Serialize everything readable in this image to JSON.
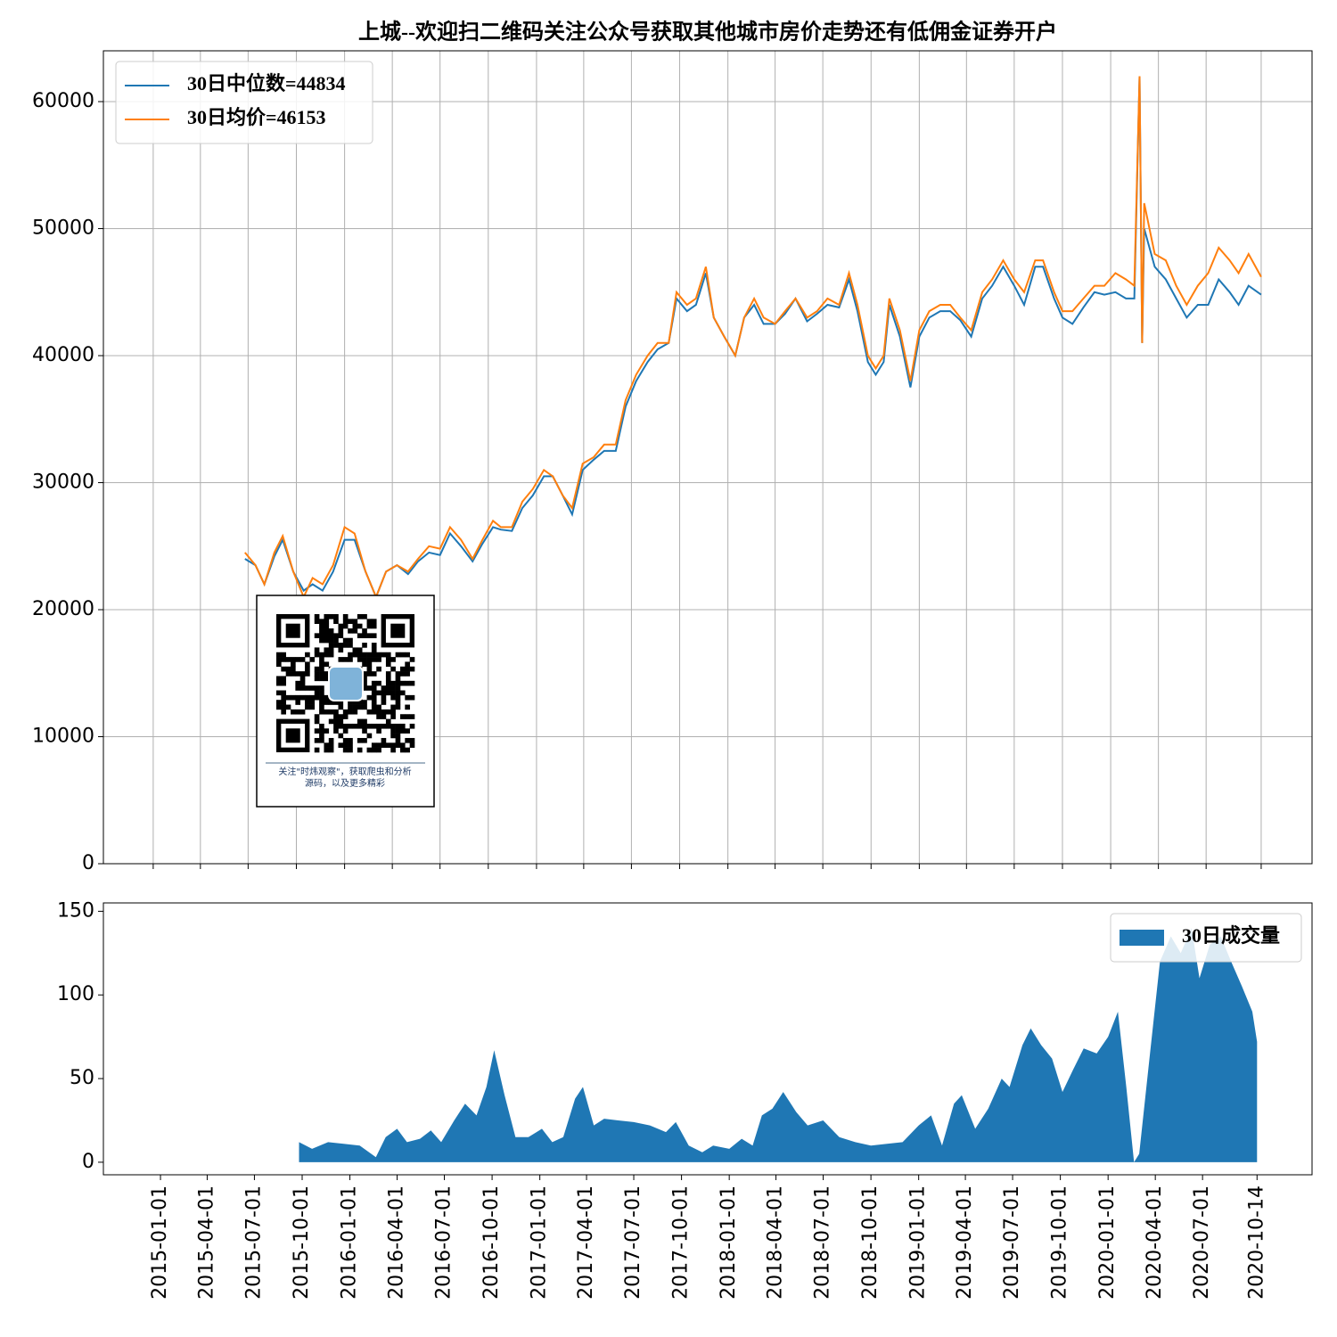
{
  "chart_data": [
    {
      "type": "line",
      "title": "上城--欢迎扫二维码关注公众号获取其他城市房价走势还有低佣金证券开户",
      "xlim": [
        "2014-09-28",
        "2021-01-19"
      ],
      "ylim": [
        0,
        64000
      ],
      "yticks": [
        0,
        10000,
        20000,
        30000,
        40000,
        50000,
        60000
      ],
      "xticks": [
        "2015-01-01",
        "2015-04-01",
        "2015-07-01",
        "2015-10-01",
        "2016-01-01",
        "2016-04-01",
        "2016-07-01",
        "2016-10-01",
        "2017-01-01",
        "2017-04-01",
        "2017-07-01",
        "2017-10-01",
        "2018-01-01",
        "2018-04-01",
        "2018-07-01",
        "2018-10-01",
        "2019-01-01",
        "2019-04-01",
        "2019-07-01",
        "2019-10-01",
        "2020-01-01",
        "2020-04-01",
        "2020-07-01",
        "2020-10-14"
      ],
      "grid": true,
      "legend": "upper left",
      "qr_caption": [
        "关注\"时炜观察\"，获取爬虫和分析",
        "源码，以及更多精彩"
      ],
      "x": [
        "2015-06-25",
        "2015-07-15",
        "2015-08-01",
        "2015-08-20",
        "2015-09-05",
        "2015-09-25",
        "2015-10-15",
        "2015-11-01",
        "2015-11-20",
        "2015-12-10",
        "2016-01-01",
        "2016-01-20",
        "2016-02-10",
        "2016-03-01",
        "2016-03-20",
        "2016-04-10",
        "2016-05-01",
        "2016-05-20",
        "2016-06-10",
        "2016-07-01",
        "2016-07-20",
        "2016-08-10",
        "2016-09-01",
        "2016-09-20",
        "2016-10-10",
        "2016-10-25",
        "2016-11-15",
        "2016-12-05",
        "2016-12-25",
        "2017-01-15",
        "2017-02-01",
        "2017-02-20",
        "2017-03-10",
        "2017-03-30",
        "2017-04-20",
        "2017-05-10",
        "2017-06-01",
        "2017-06-20",
        "2017-07-10",
        "2017-08-01",
        "2017-08-20",
        "2017-09-10",
        "2017-09-25",
        "2017-10-15",
        "2017-11-01",
        "2017-11-20",
        "2017-12-05",
        "2017-12-25",
        "2018-01-15",
        "2018-02-01",
        "2018-02-20",
        "2018-03-10",
        "2018-04-01",
        "2018-04-20",
        "2018-05-10",
        "2018-06-01",
        "2018-06-20",
        "2018-07-10",
        "2018-08-01",
        "2018-08-20",
        "2018-09-05",
        "2018-09-25",
        "2018-10-10",
        "2018-10-25",
        "2018-11-05",
        "2018-11-25",
        "2018-12-15",
        "2019-01-01",
        "2019-01-20",
        "2019-02-10",
        "2019-03-01",
        "2019-03-20",
        "2019-04-10",
        "2019-05-01",
        "2019-05-20",
        "2019-06-10",
        "2019-07-01",
        "2019-07-20",
        "2019-08-10",
        "2019-08-25",
        "2019-09-15",
        "2019-10-01",
        "2019-10-20",
        "2019-11-10",
        "2019-12-01",
        "2019-12-20",
        "2020-01-10",
        "2020-01-30",
        "2020-02-15",
        "2020-02-25",
        "2020-03-01",
        "2020-03-05",
        "2020-03-25",
        "2020-04-15",
        "2020-05-05",
        "2020-05-25",
        "2020-06-15",
        "2020-07-05",
        "2020-07-25",
        "2020-08-15",
        "2020-09-01",
        "2020-09-20",
        "2020-10-14"
      ],
      "series": [
        {
          "name": "30日中位数=44834",
          "color": "#1f77b4",
          "values": [
            24000,
            23500,
            22000,
            24200,
            25500,
            23000,
            21500,
            22000,
            21500,
            23000,
            25500,
            25500,
            23000,
            21000,
            23000,
            23500,
            22800,
            23800,
            24500,
            24300,
            26000,
            25000,
            23800,
            25200,
            26500,
            26300,
            26200,
            28000,
            29000,
            30500,
            30500,
            29000,
            27500,
            31000,
            31800,
            32500,
            32500,
            36000,
            38000,
            39500,
            40500,
            41000,
            44500,
            43500,
            44000,
            46500,
            43000,
            41500,
            40000,
            43000,
            44000,
            42500,
            42500,
            43300,
            44500,
            42700,
            43300,
            44000,
            43800,
            46000,
            43500,
            39500,
            38500,
            39500,
            44000,
            41500,
            37500,
            41500,
            43000,
            43500,
            43500,
            42800,
            41500,
            44500,
            45500,
            47000,
            45500,
            44000,
            47000,
            47000,
            44500,
            43000,
            42500,
            43800,
            45000,
            44800,
            45000,
            44500,
            44500,
            62000,
            41000,
            50000,
            47000,
            46000,
            44500,
            43000,
            44000,
            44000,
            46000,
            45000,
            44000,
            45500,
            44800
          ]
        },
        {
          "name": "30日均价=46153",
          "color": "#ff7f0e",
          "values": [
            24500,
            23500,
            22000,
            24500,
            25800,
            23000,
            21000,
            22500,
            22000,
            23500,
            26500,
            26000,
            23000,
            21000,
            23000,
            23500,
            23000,
            24000,
            25000,
            24800,
            26500,
            25500,
            24000,
            25500,
            27000,
            26500,
            26500,
            28500,
            29500,
            31000,
            30500,
            29000,
            28000,
            31500,
            32000,
            33000,
            33000,
            36500,
            38500,
            40000,
            41000,
            41000,
            45000,
            44000,
            44500,
            47000,
            43000,
            41500,
            40000,
            43000,
            44500,
            43000,
            42500,
            43500,
            44500,
            43000,
            43500,
            44500,
            44000,
            46500,
            44000,
            40000,
            39000,
            40000,
            44500,
            42000,
            38000,
            42000,
            43500,
            44000,
            44000,
            43000,
            42000,
            45000,
            46000,
            47500,
            46000,
            45000,
            47500,
            47500,
            45000,
            43500,
            43500,
            44500,
            45500,
            45500,
            46500,
            46000,
            45500,
            62000,
            41000,
            52000,
            48000,
            47500,
            45500,
            44000,
            45500,
            46500,
            48500,
            47500,
            46500,
            48000,
            46200
          ]
        }
      ]
    },
    {
      "type": "area",
      "xlim": [
        "2014-09-13",
        "2021-01-28"
      ],
      "ylim": [
        -7.5,
        155
      ],
      "yticks": [
        0,
        50,
        100,
        150
      ],
      "xticks": [
        "2015-01-01",
        "2015-04-01",
        "2015-07-01",
        "2015-10-01",
        "2016-01-01",
        "2016-04-01",
        "2016-07-01",
        "2016-10-01",
        "2017-01-01",
        "2017-04-01",
        "2017-07-01",
        "2017-10-01",
        "2018-01-01",
        "2018-04-01",
        "2018-07-01",
        "2018-10-01",
        "2019-01-01",
        "2019-04-01",
        "2019-07-01",
        "2019-10-01",
        "2020-01-01",
        "2020-04-01",
        "2020-07-01",
        "2020-10-14"
      ],
      "legend": "upper right",
      "x": [
        "2015-09-25",
        "2015-10-20",
        "2015-11-20",
        "2015-12-20",
        "2016-01-20",
        "2016-02-20",
        "2016-03-10",
        "2016-04-01",
        "2016-04-20",
        "2016-05-15",
        "2016-06-05",
        "2016-06-25",
        "2016-07-20",
        "2016-08-10",
        "2016-09-01",
        "2016-09-20",
        "2016-10-05",
        "2016-10-25",
        "2016-11-15",
        "2016-12-10",
        "2017-01-05",
        "2017-01-25",
        "2017-02-15",
        "2017-03-10",
        "2017-03-25",
        "2017-04-15",
        "2017-05-05",
        "2017-06-01",
        "2017-07-01",
        "2017-08-01",
        "2017-09-01",
        "2017-09-20",
        "2017-10-15",
        "2017-11-10",
        "2017-12-01",
        "2018-01-01",
        "2018-01-25",
        "2018-02-15",
        "2018-03-05",
        "2018-03-25",
        "2018-04-15",
        "2018-05-10",
        "2018-06-01",
        "2018-07-01",
        "2018-08-01",
        "2018-09-01",
        "2018-10-01",
        "2018-11-01",
        "2018-12-01",
        "2019-01-01",
        "2019-01-25",
        "2019-02-15",
        "2019-03-10",
        "2019-03-25",
        "2019-04-20",
        "2019-05-15",
        "2019-06-10",
        "2019-06-25",
        "2019-07-20",
        "2019-08-05",
        "2019-08-25",
        "2019-09-15",
        "2019-10-05",
        "2019-10-25",
        "2019-11-15",
        "2019-12-10",
        "2020-01-01",
        "2020-01-20",
        "2020-02-05",
        "2020-02-20",
        "2020-03-01",
        "2020-03-20",
        "2020-04-10",
        "2020-05-01",
        "2020-05-20",
        "2020-06-10",
        "2020-06-25",
        "2020-07-15",
        "2020-08-05",
        "2020-08-25",
        "2020-09-15",
        "2020-10-05",
        "2020-10-14"
      ],
      "series": [
        {
          "name": "30日成交量",
          "color": "#1f77b4",
          "values": [
            12,
            8,
            12,
            11,
            10,
            3,
            15,
            20,
            12,
            14,
            19,
            12,
            25,
            35,
            28,
            45,
            67,
            40,
            15,
            15,
            20,
            12,
            15,
            38,
            45,
            22,
            26,
            25,
            24,
            22,
            18,
            24,
            10,
            6,
            10,
            8,
            14,
            10,
            28,
            32,
            42,
            30,
            22,
            25,
            15,
            12,
            10,
            11,
            12,
            22,
            28,
            10,
            35,
            40,
            20,
            32,
            50,
            45,
            70,
            80,
            70,
            62,
            42,
            55,
            68,
            65,
            75,
            90,
            45,
            0,
            5,
            60,
            120,
            135,
            125,
            140,
            110,
            130,
            135,
            120,
            105,
            90,
            72
          ]
        }
      ]
    }
  ]
}
